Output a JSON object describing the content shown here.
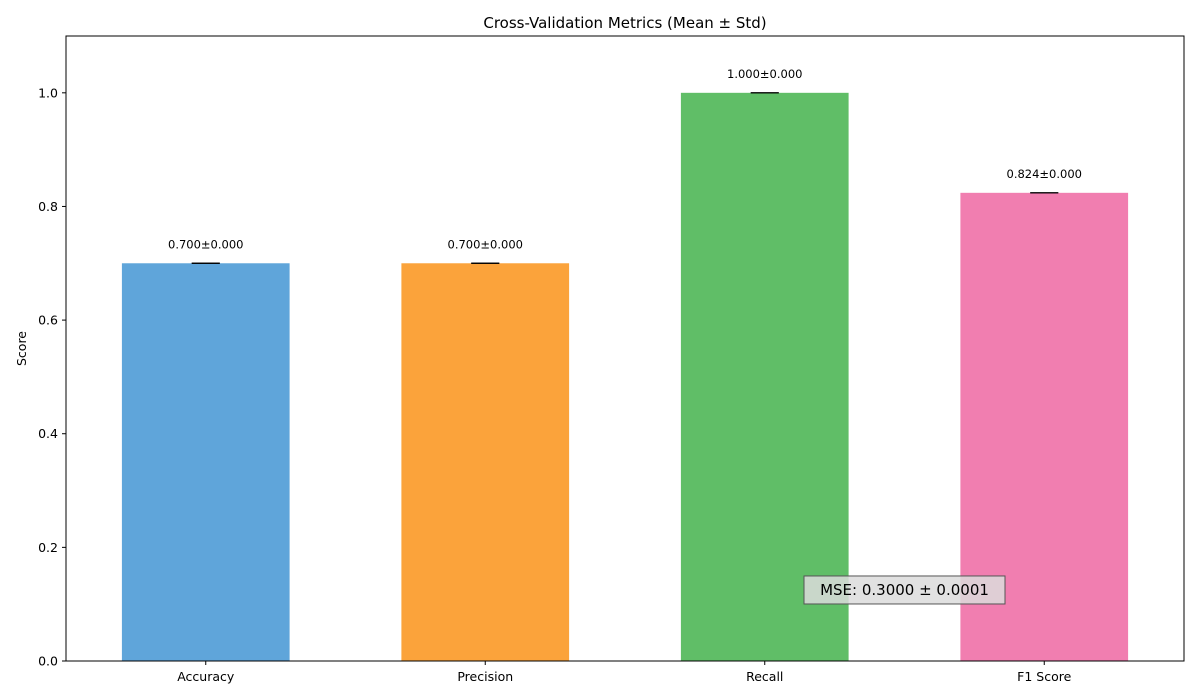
{
  "chart_data": {
    "type": "bar",
    "title": "Cross-Validation Metrics (Mean ± Std)",
    "xlabel": "",
    "ylabel": "Score",
    "categories": [
      "Accuracy",
      "Precision",
      "Recall",
      "F1 Score"
    ],
    "values": [
      0.7,
      0.7,
      1.0,
      0.824
    ],
    "errors": [
      0.0,
      0.0,
      0.0,
      0.0
    ],
    "value_labels": [
      "0.700±0.000",
      "0.700±0.000",
      "1.000±0.000",
      "0.824±0.000"
    ],
    "colors": [
      "#5fa5da",
      "#fba33b",
      "#60be67",
      "#f17eb0"
    ],
    "ylim": [
      0,
      1.1
    ],
    "yticks": [
      0.0,
      0.2,
      0.4,
      0.6,
      0.8,
      1.0
    ],
    "ytick_labels": [
      "0.0",
      "0.2",
      "0.4",
      "0.6",
      "0.8",
      "1.0"
    ],
    "grid": false,
    "annotation": {
      "text": "MSE: 0.3000 ± 0.0001",
      "y": 0.125
    }
  }
}
